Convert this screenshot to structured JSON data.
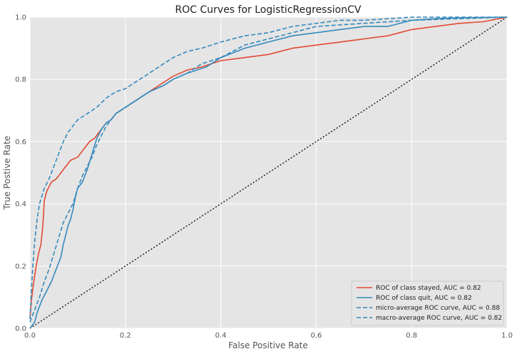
{
  "chart_data": {
    "type": "line",
    "title": "ROC Curves for LogisticRegressionCV",
    "xlabel": "False Positive Rate",
    "ylabel": "True Postive Rate",
    "xlim": [
      0,
      1
    ],
    "ylim": [
      0,
      1
    ],
    "xticks": [
      "0.0",
      "0.2",
      "0.4",
      "0.6",
      "0.8",
      "1.0"
    ],
    "yticks": [
      "0.0",
      "0.2",
      "0.4",
      "0.6",
      "0.8",
      "1.0"
    ],
    "grid": true,
    "legend_position": "lower-right",
    "series": [
      {
        "name": "ROC of class stayed, AUC = 0.82",
        "color": "#E24A33",
        "style": "solid",
        "points": [
          [
            0,
            0.03
          ],
          [
            0.003,
            0.09
          ],
          [
            0.008,
            0.15
          ],
          [
            0.013,
            0.2
          ],
          [
            0.018,
            0.24
          ],
          [
            0.023,
            0.27
          ],
          [
            0.027,
            0.33
          ],
          [
            0.03,
            0.41
          ],
          [
            0.035,
            0.44
          ],
          [
            0.045,
            0.47
          ],
          [
            0.055,
            0.48
          ],
          [
            0.065,
            0.5
          ],
          [
            0.075,
            0.52
          ],
          [
            0.085,
            0.54
          ],
          [
            0.1,
            0.55
          ],
          [
            0.115,
            0.58
          ],
          [
            0.125,
            0.6
          ],
          [
            0.135,
            0.61
          ],
          [
            0.15,
            0.64
          ],
          [
            0.16,
            0.66
          ],
          [
            0.17,
            0.67
          ],
          [
            0.18,
            0.69
          ],
          [
            0.2,
            0.71
          ],
          [
            0.22,
            0.73
          ],
          [
            0.25,
            0.76
          ],
          [
            0.28,
            0.79
          ],
          [
            0.3,
            0.81
          ],
          [
            0.33,
            0.83
          ],
          [
            0.36,
            0.84
          ],
          [
            0.4,
            0.86
          ],
          [
            0.45,
            0.87
          ],
          [
            0.5,
            0.88
          ],
          [
            0.55,
            0.9
          ],
          [
            0.6,
            0.91
          ],
          [
            0.65,
            0.92
          ],
          [
            0.7,
            0.93
          ],
          [
            0.75,
            0.94
          ],
          [
            0.8,
            0.96
          ],
          [
            0.85,
            0.97
          ],
          [
            0.9,
            0.98
          ],
          [
            0.95,
            0.985
          ],
          [
            1.0,
            1.0
          ]
        ]
      },
      {
        "name": "ROC of class quit, AUC = 0.82",
        "color": "#348ABD",
        "style": "solid",
        "points": [
          [
            0,
            0
          ],
          [
            0.01,
            0.02
          ],
          [
            0.015,
            0.05
          ],
          [
            0.025,
            0.09
          ],
          [
            0.035,
            0.12
          ],
          [
            0.045,
            0.15
          ],
          [
            0.055,
            0.19
          ],
          [
            0.065,
            0.23
          ],
          [
            0.07,
            0.27
          ],
          [
            0.075,
            0.3
          ],
          [
            0.08,
            0.33
          ],
          [
            0.085,
            0.35
          ],
          [
            0.09,
            0.38
          ],
          [
            0.095,
            0.42
          ],
          [
            0.1,
            0.45
          ],
          [
            0.11,
            0.47
          ],
          [
            0.12,
            0.51
          ],
          [
            0.13,
            0.56
          ],
          [
            0.14,
            0.61
          ],
          [
            0.15,
            0.64
          ],
          [
            0.16,
            0.66
          ],
          [
            0.17,
            0.67
          ],
          [
            0.18,
            0.69
          ],
          [
            0.2,
            0.71
          ],
          [
            0.22,
            0.73
          ],
          [
            0.25,
            0.76
          ],
          [
            0.28,
            0.78
          ],
          [
            0.3,
            0.8
          ],
          [
            0.33,
            0.82
          ],
          [
            0.37,
            0.84
          ],
          [
            0.4,
            0.87
          ],
          [
            0.45,
            0.9
          ],
          [
            0.5,
            0.92
          ],
          [
            0.55,
            0.94
          ],
          [
            0.6,
            0.95
          ],
          [
            0.65,
            0.96
          ],
          [
            0.7,
            0.97
          ],
          [
            0.75,
            0.97
          ],
          [
            0.8,
            0.99
          ],
          [
            0.85,
            0.995
          ],
          [
            0.9,
            0.998
          ],
          [
            1.0,
            1.0
          ]
        ]
      },
      {
        "name": "micro-average ROC curve, AUC = 0.88",
        "color": "#348ABD",
        "style": "dashed",
        "points": [
          [
            0,
            0.03
          ],
          [
            0.003,
            0.12
          ],
          [
            0.006,
            0.2
          ],
          [
            0.01,
            0.28
          ],
          [
            0.015,
            0.35
          ],
          [
            0.02,
            0.4
          ],
          [
            0.03,
            0.45
          ],
          [
            0.04,
            0.48
          ],
          [
            0.05,
            0.52
          ],
          [
            0.06,
            0.56
          ],
          [
            0.07,
            0.6
          ],
          [
            0.08,
            0.63
          ],
          [
            0.09,
            0.65
          ],
          [
            0.1,
            0.67
          ],
          [
            0.12,
            0.69
          ],
          [
            0.14,
            0.71
          ],
          [
            0.16,
            0.74
          ],
          [
            0.18,
            0.76
          ],
          [
            0.2,
            0.77
          ],
          [
            0.22,
            0.79
          ],
          [
            0.25,
            0.82
          ],
          [
            0.28,
            0.85
          ],
          [
            0.3,
            0.87
          ],
          [
            0.33,
            0.89
          ],
          [
            0.36,
            0.9
          ],
          [
            0.4,
            0.92
          ],
          [
            0.45,
            0.94
          ],
          [
            0.5,
            0.95
          ],
          [
            0.55,
            0.97
          ],
          [
            0.6,
            0.98
          ],
          [
            0.65,
            0.99
          ],
          [
            0.7,
            0.99
          ],
          [
            0.8,
            1.0
          ],
          [
            1.0,
            1.0
          ]
        ]
      },
      {
        "name": "macro-average ROC curve, AUC = 0.82",
        "color": "#348ABD",
        "style": "dashed",
        "points": [
          [
            0,
            0.02
          ],
          [
            0.01,
            0.06
          ],
          [
            0.02,
            0.1
          ],
          [
            0.03,
            0.15
          ],
          [
            0.04,
            0.19
          ],
          [
            0.05,
            0.24
          ],
          [
            0.06,
            0.29
          ],
          [
            0.07,
            0.34
          ],
          [
            0.08,
            0.37
          ],
          [
            0.09,
            0.4
          ],
          [
            0.1,
            0.45
          ],
          [
            0.11,
            0.49
          ],
          [
            0.12,
            0.52
          ],
          [
            0.13,
            0.55
          ],
          [
            0.14,
            0.59
          ],
          [
            0.15,
            0.62
          ],
          [
            0.16,
            0.65
          ],
          [
            0.17,
            0.67
          ],
          [
            0.18,
            0.69
          ],
          [
            0.2,
            0.71
          ],
          [
            0.22,
            0.73
          ],
          [
            0.25,
            0.76
          ],
          [
            0.28,
            0.78
          ],
          [
            0.3,
            0.8
          ],
          [
            0.33,
            0.82
          ],
          [
            0.36,
            0.85
          ],
          [
            0.4,
            0.87
          ],
          [
            0.45,
            0.91
          ],
          [
            0.5,
            0.93
          ],
          [
            0.55,
            0.95
          ],
          [
            0.6,
            0.97
          ],
          [
            0.65,
            0.975
          ],
          [
            0.7,
            0.98
          ],
          [
            0.75,
            0.985
          ],
          [
            0.8,
            0.99
          ],
          [
            0.9,
            0.995
          ],
          [
            1.0,
            1.0
          ]
        ]
      },
      {
        "name": "",
        "color": "#222222",
        "style": "dotted",
        "points": [
          [
            0,
            0
          ],
          [
            1,
            1
          ]
        ]
      }
    ]
  }
}
